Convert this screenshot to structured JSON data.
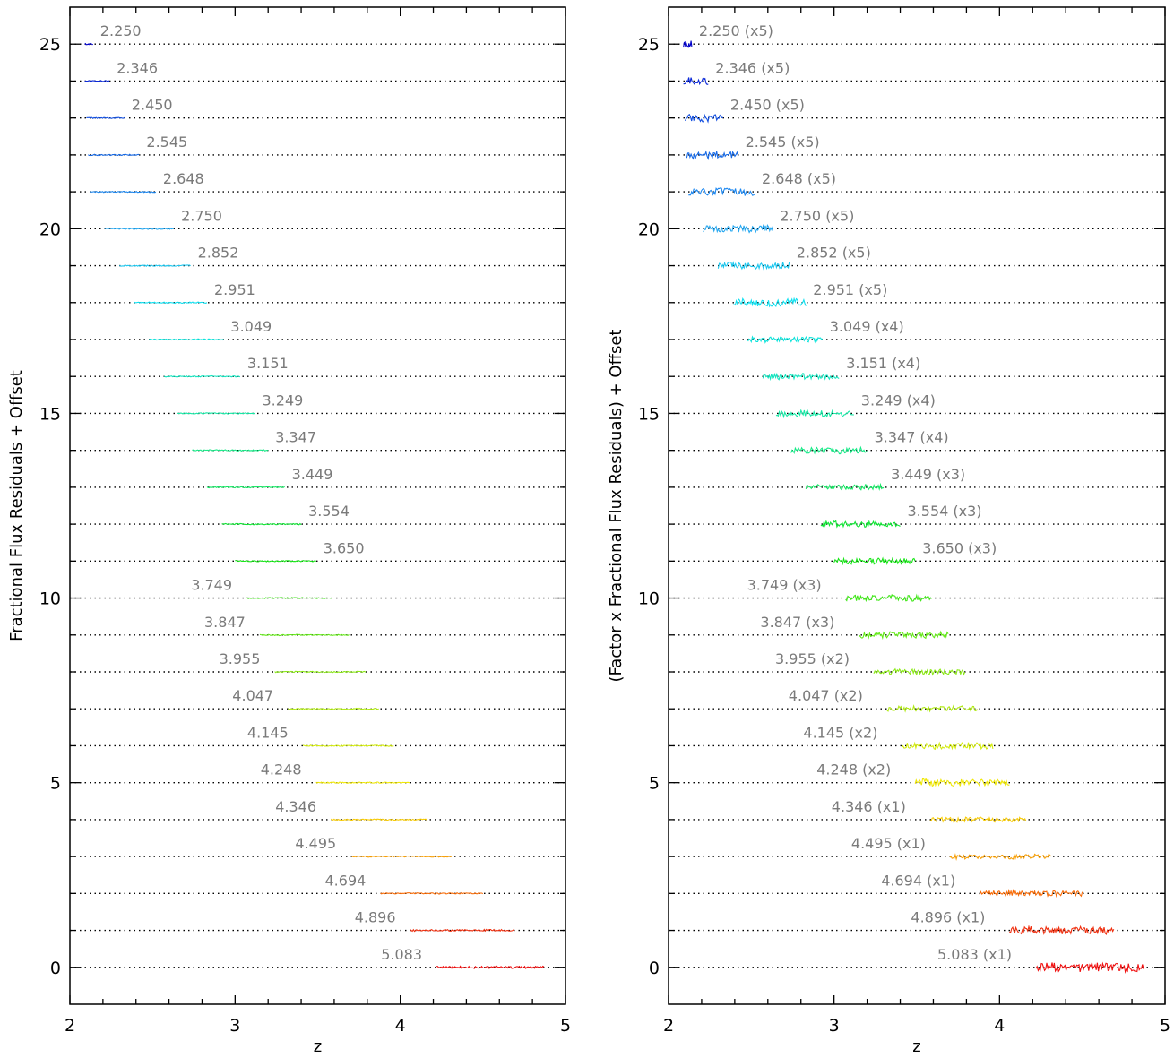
{
  "chart_data": [
    {
      "type": "line",
      "panel": "left",
      "xlabel": "z",
      "ylabel": "Fractional Flux Residuals + Offset",
      "xlim": [
        2,
        5
      ],
      "ylim": [
        -1,
        26
      ],
      "x_ticks": [
        "2",
        "3",
        "4",
        "5"
      ],
      "y_ticks": [
        "0",
        "5",
        "10",
        "15",
        "20",
        "25"
      ],
      "grid": "dotted horizontal lines at each integer offset",
      "series": [
        {
          "name": "2.250",
          "offset": 25,
          "z_range": [
            2.09,
            2.14
          ],
          "amplitude": 0.02,
          "color": "#0000c8"
        },
        {
          "name": "2.346",
          "offset": 24,
          "z_range": [
            2.09,
            2.24
          ],
          "amplitude": 0.02,
          "color": "#0a28d8"
        },
        {
          "name": "2.450",
          "offset": 23,
          "z_range": [
            2.1,
            2.33
          ],
          "amplitude": 0.02,
          "color": "#1450e0"
        },
        {
          "name": "2.545",
          "offset": 22,
          "z_range": [
            2.11,
            2.42
          ],
          "amplitude": 0.02,
          "color": "#1468e6"
        },
        {
          "name": "2.648",
          "offset": 21,
          "z_range": [
            2.12,
            2.52
          ],
          "amplitude": 0.02,
          "color": "#1e88f0"
        },
        {
          "name": "2.750",
          "offset": 20,
          "z_range": [
            2.21,
            2.63
          ],
          "amplitude": 0.02,
          "color": "#28a8f0"
        },
        {
          "name": "2.852",
          "offset": 19,
          "z_range": [
            2.3,
            2.73
          ],
          "amplitude": 0.02,
          "color": "#1cc8f0"
        },
        {
          "name": "2.951",
          "offset": 18,
          "z_range": [
            2.39,
            2.83
          ],
          "amplitude": 0.02,
          "color": "#10e0f0"
        },
        {
          "name": "3.049",
          "offset": 17,
          "z_range": [
            2.48,
            2.93
          ],
          "amplitude": 0.02,
          "color": "#10e4dc"
        },
        {
          "name": "3.151",
          "offset": 16,
          "z_range": [
            2.57,
            3.03
          ],
          "amplitude": 0.02,
          "color": "#14e6c0"
        },
        {
          "name": "3.249",
          "offset": 15,
          "z_range": [
            2.65,
            3.12
          ],
          "amplitude": 0.02,
          "color": "#18e8a6"
        },
        {
          "name": "3.347",
          "offset": 14,
          "z_range": [
            2.74,
            3.2
          ],
          "amplitude": 0.02,
          "color": "#18ea88"
        },
        {
          "name": "3.449",
          "offset": 13,
          "z_range": [
            2.83,
            3.3
          ],
          "amplitude": 0.02,
          "color": "#14ea64"
        },
        {
          "name": "3.554",
          "offset": 12,
          "z_range": [
            2.92,
            3.4
          ],
          "amplitude": 0.02,
          "color": "#10e634"
        },
        {
          "name": "3.650",
          "offset": 11,
          "z_range": [
            3.0,
            3.49
          ],
          "amplitude": 0.02,
          "color": "#18e618"
        },
        {
          "name": "3.749",
          "offset": 10,
          "z_range": [
            3.07,
            3.59
          ],
          "amplitude": 0.02,
          "color": "#40e818"
        },
        {
          "name": "3.847",
          "offset": 9,
          "z_range": [
            3.15,
            3.69
          ],
          "amplitude": 0.02,
          "color": "#64ea18"
        },
        {
          "name": "3.955",
          "offset": 8,
          "z_range": [
            3.24,
            3.79
          ],
          "amplitude": 0.02,
          "color": "#8cea18"
        },
        {
          "name": "4.047",
          "offset": 7,
          "z_range": [
            3.32,
            3.87
          ],
          "amplitude": 0.02,
          "color": "#b0ea14"
        },
        {
          "name": "4.145",
          "offset": 6,
          "z_range": [
            3.41,
            3.96
          ],
          "amplitude": 0.02,
          "color": "#d4ec10"
        },
        {
          "name": "4.248",
          "offset": 5,
          "z_range": [
            3.49,
            4.06
          ],
          "amplitude": 0.02,
          "color": "#f0e808"
        },
        {
          "name": "4.346",
          "offset": 4,
          "z_range": [
            3.58,
            4.16
          ],
          "amplitude": 0.02,
          "color": "#f8cc08"
        },
        {
          "name": "4.495",
          "offset": 3,
          "z_range": [
            3.7,
            4.31
          ],
          "amplitude": 0.02,
          "color": "#f8a008"
        },
        {
          "name": "4.694",
          "offset": 2,
          "z_range": [
            3.88,
            4.5
          ],
          "amplitude": 0.02,
          "color": "#f86c08"
        },
        {
          "name": "4.896",
          "offset": 1,
          "z_range": [
            4.06,
            4.69
          ],
          "amplitude": 0.03,
          "color": "#f03010"
        },
        {
          "name": "5.083",
          "offset": 0,
          "z_range": [
            4.22,
            4.87
          ],
          "amplitude": 0.04,
          "color": "#f01010"
        }
      ]
    },
    {
      "type": "line",
      "panel": "right",
      "xlabel": "z",
      "ylabel": "(Factor x Fractional Flux Residuals) + Offset",
      "xlim": [
        2,
        5
      ],
      "ylim": [
        -1,
        26
      ],
      "x_ticks": [
        "2",
        "3",
        "4",
        "5"
      ],
      "y_ticks": [
        "0",
        "5",
        "10",
        "15",
        "20",
        "25"
      ],
      "grid": "dotted horizontal lines at each integer offset",
      "series": [
        {
          "name": "2.250 (x5)",
          "offset": 25,
          "z_range": [
            2.09,
            2.14
          ],
          "amplitude": 0.12,
          "color": "#0000c8"
        },
        {
          "name": "2.346 (x5)",
          "offset": 24,
          "z_range": [
            2.09,
            2.24
          ],
          "amplitude": 0.12,
          "color": "#0a28d8"
        },
        {
          "name": "2.450 (x5)",
          "offset": 23,
          "z_range": [
            2.1,
            2.33
          ],
          "amplitude": 0.12,
          "color": "#1450e0"
        },
        {
          "name": "2.545 (x5)",
          "offset": 22,
          "z_range": [
            2.11,
            2.42
          ],
          "amplitude": 0.12,
          "color": "#1468e6"
        },
        {
          "name": "2.648 (x5)",
          "offset": 21,
          "z_range": [
            2.12,
            2.52
          ],
          "amplitude": 0.12,
          "color": "#1e88f0"
        },
        {
          "name": "2.750 (x5)",
          "offset": 20,
          "z_range": [
            2.21,
            2.63
          ],
          "amplitude": 0.12,
          "color": "#28a8f0"
        },
        {
          "name": "2.852 (x5)",
          "offset": 19,
          "z_range": [
            2.3,
            2.73
          ],
          "amplitude": 0.12,
          "color": "#1cc8f0"
        },
        {
          "name": "2.951 (x5)",
          "offset": 18,
          "z_range": [
            2.39,
            2.83
          ],
          "amplitude": 0.12,
          "color": "#10e0f0"
        },
        {
          "name": "3.049 (x4)",
          "offset": 17,
          "z_range": [
            2.48,
            2.93
          ],
          "amplitude": 0.1,
          "color": "#10e4dc"
        },
        {
          "name": "3.151 (x4)",
          "offset": 16,
          "z_range": [
            2.57,
            3.03
          ],
          "amplitude": 0.1,
          "color": "#14e6c0"
        },
        {
          "name": "3.249 (x4)",
          "offset": 15,
          "z_range": [
            2.65,
            3.12
          ],
          "amplitude": 0.1,
          "color": "#18e8a6"
        },
        {
          "name": "3.347 (x4)",
          "offset": 14,
          "z_range": [
            2.74,
            3.2
          ],
          "amplitude": 0.11,
          "color": "#18ea88"
        },
        {
          "name": "3.449 (x3)",
          "offset": 13,
          "z_range": [
            2.83,
            3.3
          ],
          "amplitude": 0.09,
          "color": "#14ea64"
        },
        {
          "name": "3.554 (x3)",
          "offset": 12,
          "z_range": [
            2.92,
            3.4
          ],
          "amplitude": 0.1,
          "color": "#10e634"
        },
        {
          "name": "3.650 (x3)",
          "offset": 11,
          "z_range": [
            3.0,
            3.49
          ],
          "amplitude": 0.1,
          "color": "#18e618"
        },
        {
          "name": "3.749 (x3)",
          "offset": 10,
          "z_range": [
            3.07,
            3.59
          ],
          "amplitude": 0.1,
          "color": "#40e818"
        },
        {
          "name": "3.847 (x3)",
          "offset": 9,
          "z_range": [
            3.15,
            3.69
          ],
          "amplitude": 0.1,
          "color": "#64ea18"
        },
        {
          "name": "3.955 (x2)",
          "offset": 8,
          "z_range": [
            3.24,
            3.79
          ],
          "amplitude": 0.09,
          "color": "#8cea18"
        },
        {
          "name": "4.047 (x2)",
          "offset": 7,
          "z_range": [
            3.32,
            3.87
          ],
          "amplitude": 0.09,
          "color": "#b0ea14"
        },
        {
          "name": "4.145 (x2)",
          "offset": 6,
          "z_range": [
            3.41,
            3.96
          ],
          "amplitude": 0.11,
          "color": "#d4ec10"
        },
        {
          "name": "4.248 (x2)",
          "offset": 5,
          "z_range": [
            3.49,
            4.06
          ],
          "amplitude": 0.12,
          "color": "#f0e808"
        },
        {
          "name": "4.346 (x1)",
          "offset": 4,
          "z_range": [
            3.58,
            4.16
          ],
          "amplitude": 0.08,
          "color": "#f8cc08"
        },
        {
          "name": "4.495 (x1)",
          "offset": 3,
          "z_range": [
            3.7,
            4.31
          ],
          "amplitude": 0.08,
          "color": "#f8a008"
        },
        {
          "name": "4.694 (x1)",
          "offset": 2,
          "z_range": [
            3.88,
            4.5
          ],
          "amplitude": 0.09,
          "color": "#f86c08"
        },
        {
          "name": "4.896 (x1)",
          "offset": 1,
          "z_range": [
            4.06,
            4.69
          ],
          "amplitude": 0.12,
          "color": "#f03010"
        },
        {
          "name": "5.083 (x1)",
          "offset": 0,
          "z_range": [
            4.22,
            4.87
          ],
          "amplitude": 0.15,
          "color": "#f01010"
        }
      ]
    }
  ]
}
